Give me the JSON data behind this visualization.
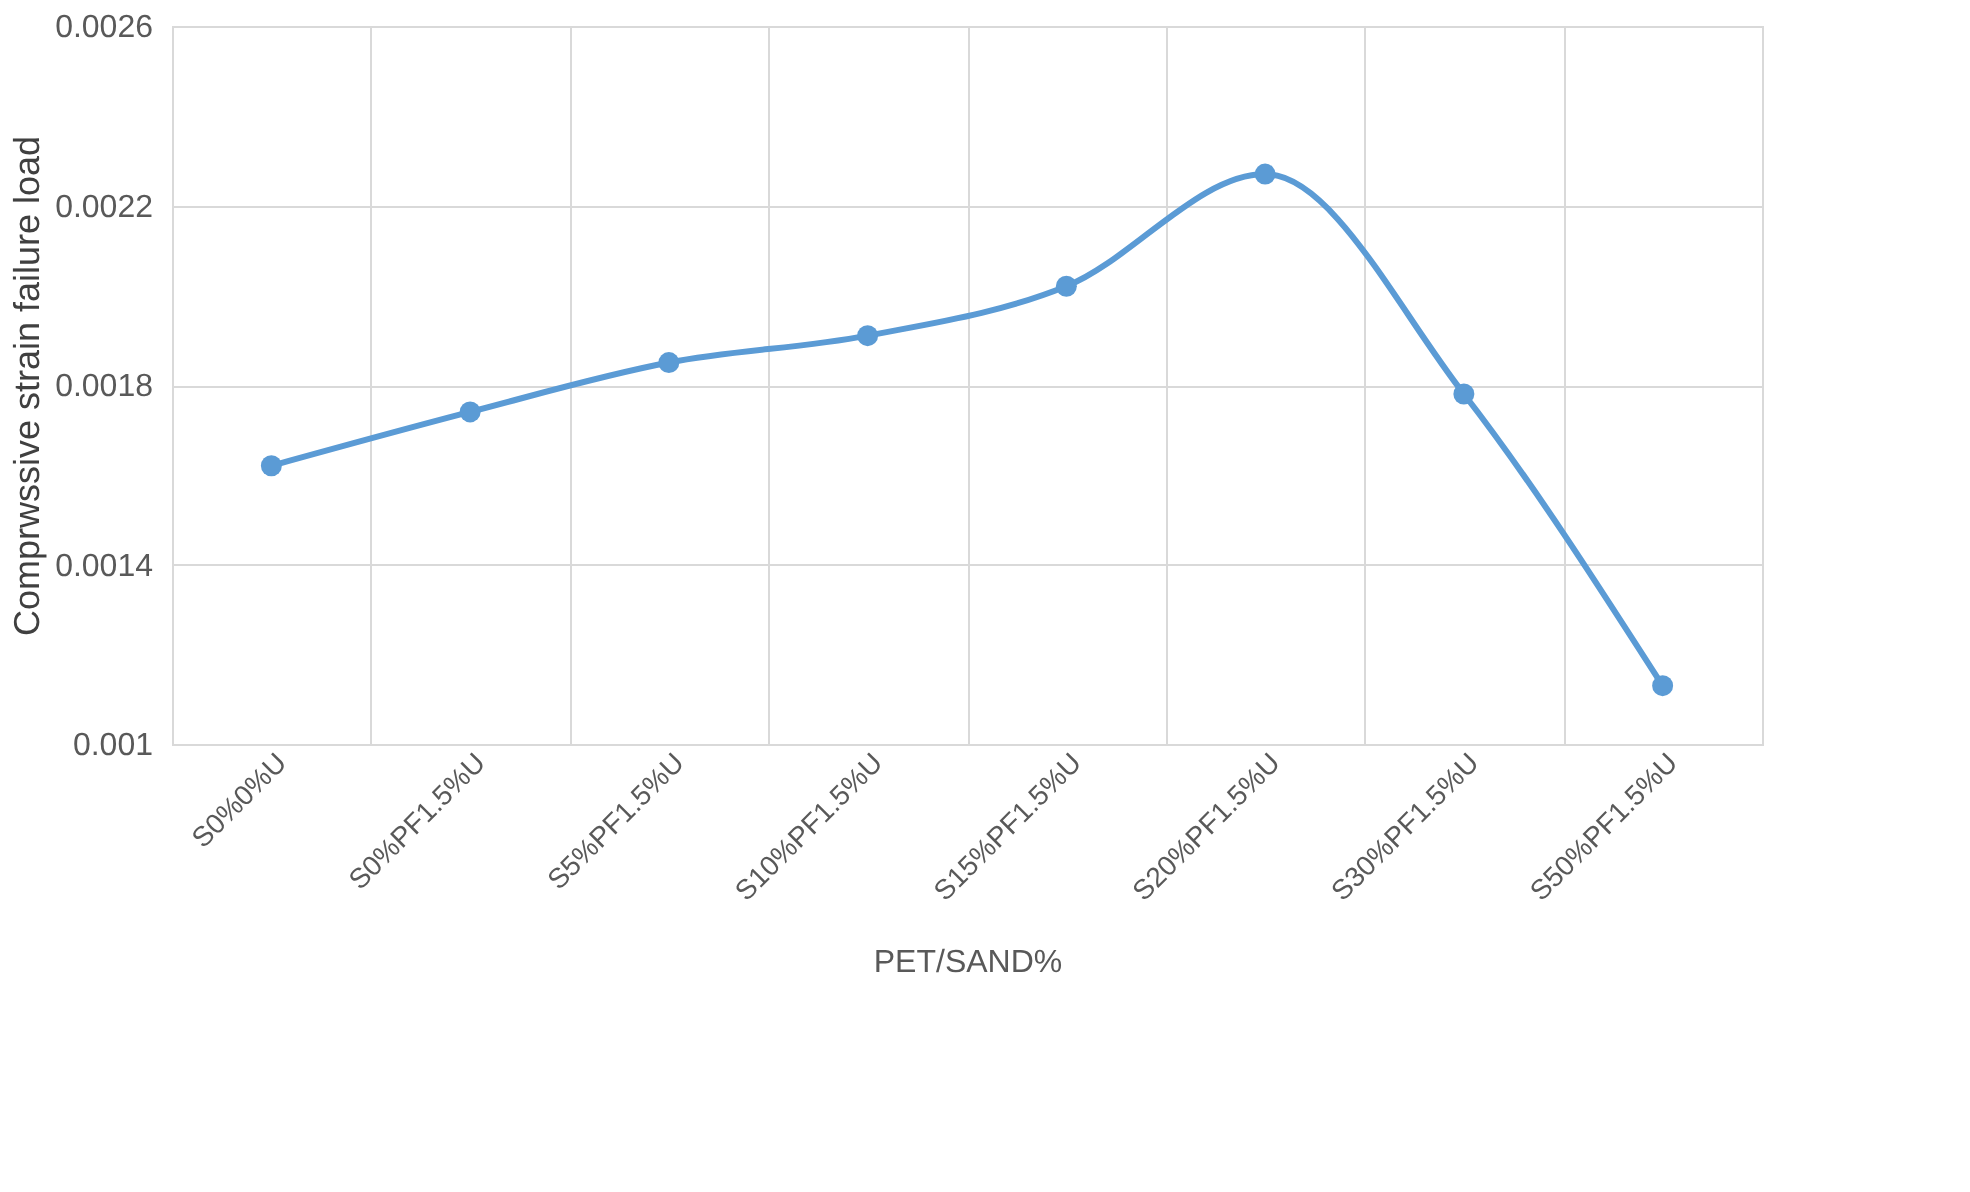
{
  "chart_data": {
    "type": "line",
    "xlabel": "PET/SAND%",
    "ylabel": "Comprwssive strain failure load",
    "categories": [
      "S0%0%U",
      "S0%PF1.5%U",
      "S5%PF1.5%U",
      "S10%PF1.5%U",
      "S15%PF1.5%U",
      "S20%PF1.5%U",
      "S30%PF1.5%U",
      "S50%PF1.5%U"
    ],
    "series": [
      {
        "color": "#5b9bd5",
        "values": [
          0.00162,
          0.00174,
          0.00185,
          0.00191,
          0.00202,
          0.00227,
          0.00178,
          0.00113
        ]
      }
    ],
    "ylim": [
      0.001,
      0.0026
    ],
    "yticks": [
      0.001,
      0.0014,
      0.0018,
      0.0022,
      0.0026
    ],
    "grid": true,
    "marker": "circle"
  }
}
